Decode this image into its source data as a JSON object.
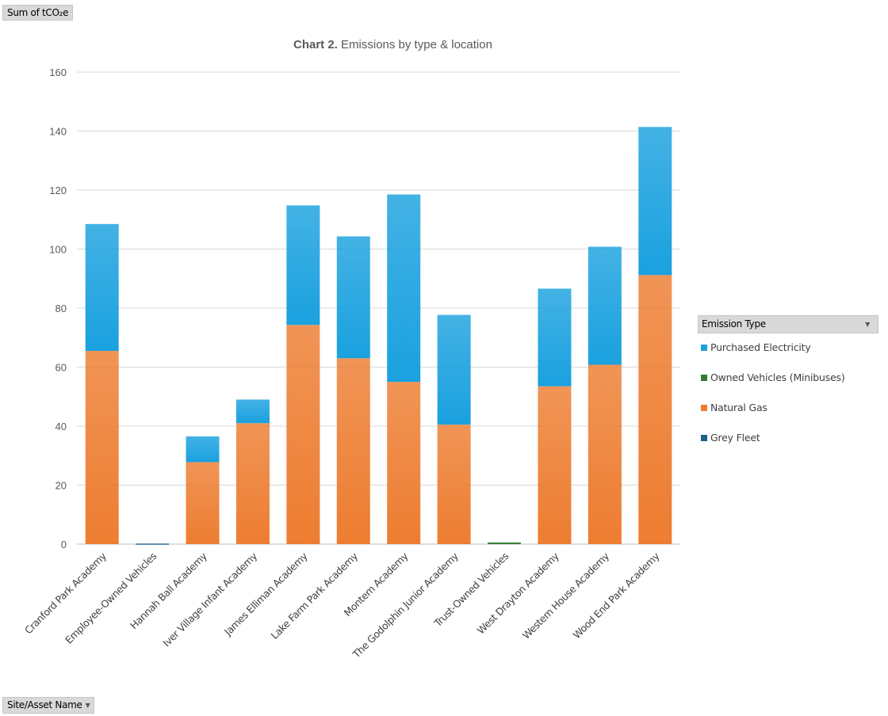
{
  "pivot": {
    "value_field": "Sum of tCO₂e",
    "axis_field": "Site/Asset Name",
    "legend_field": "Emission Type"
  },
  "chart_data": {
    "type": "bar",
    "stacked": true,
    "title_bold": "Chart 2.",
    "title_rest": "Emissions by type & location",
    "ylim": [
      0,
      160
    ],
    "yticks": [
      0,
      20,
      40,
      60,
      80,
      100,
      120,
      140,
      160
    ],
    "grid": true,
    "legend_position": "right",
    "categories": [
      "Cranford Park Academy",
      "Employee-Owned Vehicles",
      "Hannah Ball Academy",
      "Iver Village Infant Academy",
      "James Elliman Academy",
      "Lake Farm Park Academy",
      "Montem Academy",
      "The Godolphin Junior Academy",
      "Trust-Owned Vehicles",
      "West Drayton Academy",
      "Western House Academy",
      "Wood End Park Academy"
    ],
    "series": [
      {
        "name": "Grey Fleet",
        "color": "#1f5f8b",
        "values": [
          0,
          0.2,
          0,
          0,
          0,
          0,
          0,
          0,
          0,
          0,
          0,
          0
        ]
      },
      {
        "name": "Natural Gas",
        "color": "#ed7d31",
        "values": [
          65.5,
          0,
          27.8,
          41,
          74.3,
          63,
          55,
          40.5,
          0,
          53.5,
          60.8,
          91.2
        ]
      },
      {
        "name": "Owned Vehicles (Minibuses)",
        "color": "#2e7d32",
        "values": [
          0,
          0,
          0,
          0,
          0,
          0,
          0,
          0,
          0.6,
          0,
          0,
          0
        ]
      },
      {
        "name": "Purchased Electricity",
        "color": "#1aa1df",
        "values": [
          43,
          0,
          8.7,
          8,
          40.5,
          41.3,
          63.5,
          37.2,
          0,
          33.1,
          40,
          50.2
        ]
      }
    ],
    "legend_order": [
      "Purchased Electricity",
      "Owned Vehicles (Minibuses)",
      "Natural Gas",
      "Grey Fleet"
    ]
  }
}
